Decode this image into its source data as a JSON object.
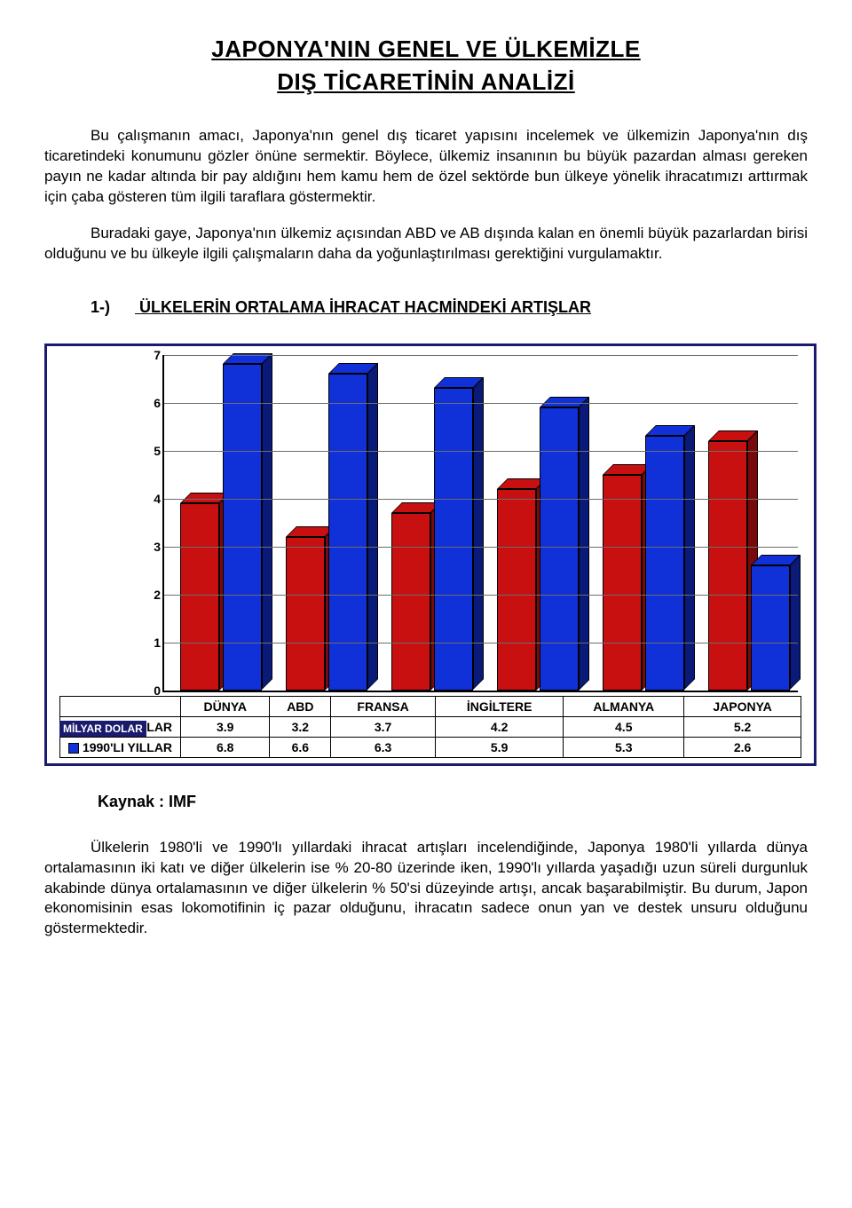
{
  "title_line1": "JAPONYA'NIN GENEL VE ÜLKEMİZLE",
  "title_line2": "DIŞ TİCARETİNİN ANALİZİ",
  "paragraphs": {
    "p1": "Bu çalışmanın amacı, Japonya'nın genel dış ticaret yapısını incelemek ve ülkemizin Japonya'nın dış ticaretindeki konumunu gözler önüne sermektir. Böylece, ülkemiz insanının bu büyük pazardan alması gereken payın ne kadar altında bir pay aldığını hem kamu hem de özel sektörde bun ülkeye yönelik ihracatımızı arttırmak için çaba gösteren tüm ilgili taraflara göstermektir.",
    "p2": "Buradaki gaye, Japonya'nın ülkemiz açısından ABD ve AB dışında kalan en önemli büyük pazarlardan birisi olduğunu ve bu ülkeyle ilgili çalışmaların daha da yoğunlaştırılması gerektiğini vurgulamaktır.",
    "p3": "Ülkelerin 1980'li ve 1990'lı yıllardaki ihracat artışları incelendiğinde, Japonya 1980'li yıllarda dünya ortalamasının iki katı ve diğer ülkelerin ise % 20-80 üzerinde iken, 1990'lı yıllarda yaşadığı uzun süreli durgunluk akabinde dünya ortalamasının ve diğer ülkelerin % 50'si düzeyinde artışı, ancak başarabilmiştir. Bu durum, Japon ekonomisinin esas lokomotifinin iç pazar olduğunu, ihracatın sadece onun yan ve destek unsuru olduğunu göstermektedir."
  },
  "section1": {
    "no": "1-)",
    "title": "ÜLKELERİN ORTALAMA İHRACAT HACMİNDEKİ ARTIŞLAR"
  },
  "chart": {
    "unit_label": "MİLYAR DOLAR",
    "categories": [
      "DÜNYA",
      "ABD",
      "FRANSA",
      "İNGİLTERE",
      "ALMANYA",
      "JAPONYA"
    ],
    "series": [
      {
        "label": "1980'Lİ YILLAR",
        "values": [
          3.9,
          3.2,
          3.7,
          4.2,
          4.5,
          5.2
        ],
        "color": "#c91010",
        "color_dark": "#7a0a0a"
      },
      {
        "label": "1990'LI YILLAR",
        "values": [
          6.8,
          6.6,
          6.3,
          5.9,
          5.3,
          2.6
        ],
        "color": "#1030d8",
        "color_dark": "#0a1a78"
      }
    ],
    "ymax": 7,
    "ytick_step": 1,
    "ytick_labels": [
      "0",
      "1",
      "2",
      "3",
      "4",
      "5",
      "6",
      "7"
    ],
    "grid_color": "#6d6d6d",
    "frame_color": "#1b1b6e"
  },
  "source_label": "Kaynak : IMF"
}
